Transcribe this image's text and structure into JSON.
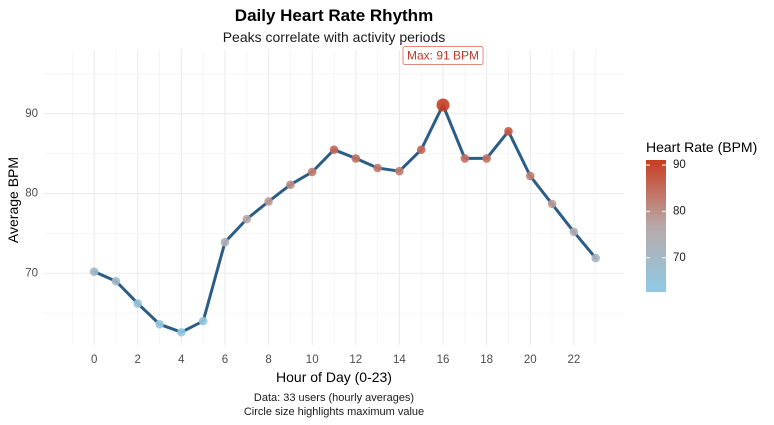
{
  "chart_data": {
    "type": "line",
    "title": "Daily Heart Rate Rhythm",
    "subtitle": "Peaks correlate with activity periods",
    "xlabel": "Hour of Day (0-23)",
    "ylabel": "Average BPM",
    "caption_lines": [
      "Data: 33 users (hourly averages)",
      "Circle size highlights maximum value"
    ],
    "x": [
      0,
      1,
      2,
      3,
      4,
      5,
      6,
      7,
      8,
      9,
      10,
      11,
      12,
      13,
      14,
      15,
      16,
      17,
      18,
      19,
      20,
      21,
      22,
      23
    ],
    "values": [
      70.2,
      69.0,
      66.2,
      63.6,
      62.6,
      64.0,
      73.9,
      76.8,
      79.0,
      81.1,
      82.7,
      85.5,
      84.4,
      83.2,
      82.8,
      85.5,
      91.1,
      84.4,
      84.4,
      87.8,
      82.2,
      78.7,
      75.2,
      71.9
    ],
    "xlim": [
      -2.3,
      24.3
    ],
    "ylim": [
      61.0,
      98.0
    ],
    "x_ticks": [
      0,
      2,
      4,
      6,
      8,
      10,
      12,
      14,
      16,
      18,
      20,
      22
    ],
    "y_ticks": [
      70,
      80,
      90
    ],
    "grid": true,
    "line_color": "#2c5d87",
    "color_scale": {
      "low_color": "#8ecae6",
      "mid_color": "#b8a9a9",
      "high_color": "#c93d20",
      "low": 62.6,
      "high": 91.1
    },
    "legend": {
      "title": "Heart Rate (BPM)",
      "ticks": [
        70,
        80,
        90
      ],
      "placement": "right"
    },
    "annotation": {
      "text": "Max: 91 BPM",
      "x": 16,
      "y": 97.2
    },
    "max_point": {
      "x": 16,
      "y": 91.1
    }
  }
}
